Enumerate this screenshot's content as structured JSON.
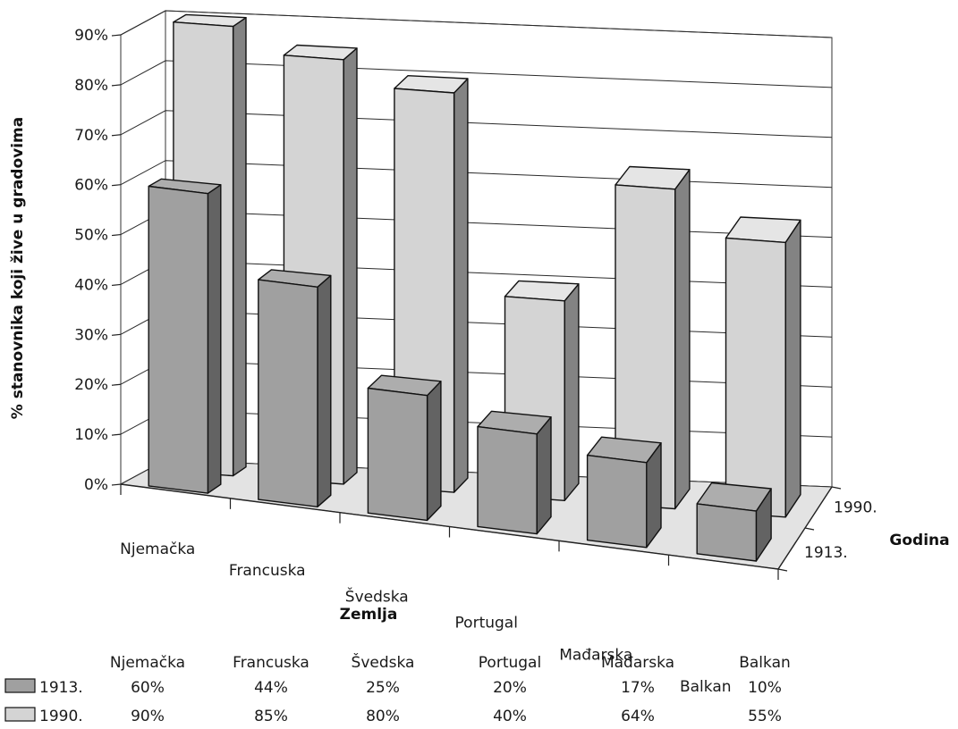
{
  "chart_data": {
    "type": "bar",
    "variant": "3d-clustered",
    "categories": [
      "Njemačka",
      "Francuska",
      "Švedska",
      "Portugal",
      "Mađarska",
      "Balkan"
    ],
    "series": [
      {
        "name": "1913.",
        "values": [
          60,
          44,
          25,
          20,
          17,
          10
        ],
        "labels": [
          "60%",
          "44%",
          "25%",
          "20%",
          "17%",
          "10%"
        ],
        "color": "#a0a0a0"
      },
      {
        "name": "1990.",
        "values": [
          90,
          85,
          80,
          40,
          64,
          55
        ],
        "labels": [
          "90%",
          "85%",
          "80%",
          "40%",
          "64%",
          "55%"
        ],
        "color": "#d4d4d4"
      }
    ],
    "ylabel": "% stanovnika koji žive u gradovima",
    "xlabel": "Zemlja",
    "zlabel": "Godina",
    "ylim": [
      0,
      90
    ],
    "yticks": [
      0,
      10,
      20,
      30,
      40,
      50,
      60,
      70,
      80,
      90
    ],
    "ytick_labels": [
      "0%",
      "10%",
      "20%",
      "30%",
      "40%",
      "50%",
      "60%",
      "70%",
      "80%",
      "90%"
    ],
    "grid": true,
    "legend_placement": "bottom data table"
  }
}
